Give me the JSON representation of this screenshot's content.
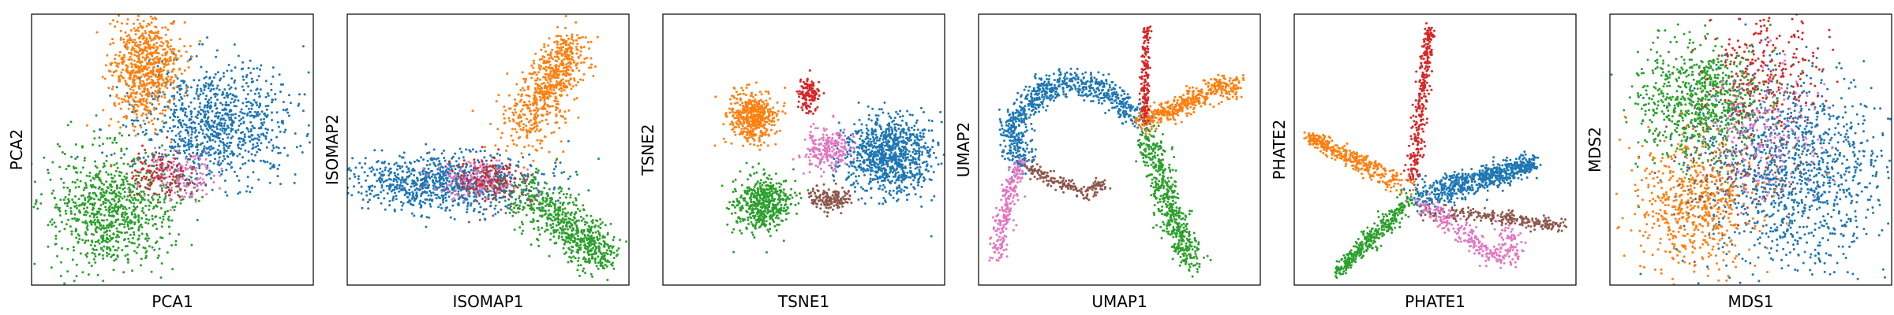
{
  "colors": {
    "blue": "#1f77b4",
    "orange": "#ff7f0e",
    "green": "#2ca02c",
    "red": "#d62728",
    "pink": "#e377c2",
    "brown": "#8c564b"
  },
  "chart_data": [
    {
      "type": "scatter",
      "title": "",
      "xlabel": "PCA1",
      "ylabel": "PCA2",
      "ticks": "none",
      "grid": false,
      "clusters": [
        {
          "color": "blue",
          "center": [
            0.65,
            0.4
          ],
          "spread": [
            0.14,
            0.11
          ],
          "points": 950,
          "shape": "blob"
        },
        {
          "color": "green",
          "center": [
            0.28,
            0.72
          ],
          "spread": [
            0.11,
            0.11
          ],
          "points": 850,
          "shape": "blob"
        },
        {
          "color": "orange",
          "center": [
            0.4,
            0.2
          ],
          "spread": [
            0.06,
            0.1
          ],
          "points": 700,
          "shape": "blob"
        },
        {
          "color": "pink",
          "center": [
            0.52,
            0.6
          ],
          "spread": [
            0.06,
            0.05
          ],
          "points": 140,
          "shape": "blob"
        },
        {
          "color": "red",
          "center": [
            0.45,
            0.58
          ],
          "spread": [
            0.05,
            0.04
          ],
          "points": 90,
          "shape": "blob"
        },
        {
          "color": "brown",
          "center": [
            0.5,
            0.62
          ],
          "spread": [
            0.05,
            0.04
          ],
          "points": 60,
          "shape": "blob"
        }
      ]
    },
    {
      "type": "scatter",
      "title": "",
      "xlabel": "ISOMAP1",
      "ylabel": "ISOMAP2",
      "ticks": "none",
      "grid": false,
      "clusters": [
        {
          "color": "blue",
          "center": [
            0.35,
            0.62
          ],
          "spread": [
            0.17,
            0.05
          ],
          "points": 950,
          "shape": "blob"
        },
        {
          "color": "orange",
          "from": [
            0.62,
            0.45
          ],
          "to": [
            0.8,
            0.1
          ],
          "width": 0.05,
          "points": 650,
          "shape": "arm"
        },
        {
          "color": "green",
          "from": [
            0.62,
            0.65
          ],
          "to": [
            0.92,
            0.9
          ],
          "width": 0.05,
          "points": 650,
          "shape": "arm"
        },
        {
          "color": "pink",
          "center": [
            0.45,
            0.62
          ],
          "spread": [
            0.07,
            0.04
          ],
          "points": 150,
          "shape": "blob"
        },
        {
          "color": "red",
          "center": [
            0.5,
            0.6
          ],
          "spread": [
            0.06,
            0.04
          ],
          "points": 120,
          "shape": "blob"
        },
        {
          "color": "brown",
          "center": [
            0.55,
            0.64
          ],
          "spread": [
            0.05,
            0.04
          ],
          "points": 70,
          "shape": "blob"
        }
      ]
    },
    {
      "type": "scatter",
      "title": "",
      "xlabel": "TSNE1",
      "ylabel": "TSNE2",
      "ticks": "none",
      "grid": false,
      "clusters": [
        {
          "color": "blue",
          "center": [
            0.8,
            0.52
          ],
          "spread": [
            0.08,
            0.07
          ],
          "points": 950,
          "shape": "blob"
        },
        {
          "color": "orange",
          "center": [
            0.32,
            0.38
          ],
          "spread": [
            0.04,
            0.05
          ],
          "points": 450,
          "shape": "blob"
        },
        {
          "color": "green",
          "center": [
            0.35,
            0.7
          ],
          "spread": [
            0.05,
            0.05
          ],
          "points": 500,
          "shape": "blob"
        },
        {
          "color": "red",
          "center": [
            0.52,
            0.3
          ],
          "spread": [
            0.02,
            0.03
          ],
          "points": 140,
          "shape": "blob"
        },
        {
          "color": "pink",
          "center": [
            0.58,
            0.5
          ],
          "spread": [
            0.04,
            0.04
          ],
          "points": 220,
          "shape": "blob"
        },
        {
          "color": "brown",
          "center": [
            0.6,
            0.68
          ],
          "spread": [
            0.04,
            0.02
          ],
          "points": 160,
          "shape": "blob"
        }
      ]
    },
    {
      "type": "scatter",
      "title": "",
      "xlabel": "UMAP1",
      "ylabel": "UMAP2",
      "ticks": "none",
      "grid": false,
      "clusters": [
        {
          "color": "blue",
          "path": [
            [
              0.15,
              0.55
            ],
            [
              0.12,
              0.4
            ],
            [
              0.22,
              0.28
            ],
            [
              0.35,
              0.25
            ],
            [
              0.48,
              0.3
            ],
            [
              0.58,
              0.4
            ]
          ],
          "width": 0.025,
          "points": 800,
          "shape": "curve"
        },
        {
          "color": "orange",
          "path": [
            [
              0.58,
              0.4
            ],
            [
              0.7,
              0.35
            ],
            [
              0.82,
              0.28
            ],
            [
              0.92,
              0.26
            ]
          ],
          "width": 0.02,
          "points": 450,
          "shape": "curve"
        },
        {
          "color": "green",
          "path": [
            [
              0.6,
              0.45
            ],
            [
              0.65,
              0.62
            ],
            [
              0.7,
              0.78
            ],
            [
              0.76,
              0.92
            ]
          ],
          "width": 0.025,
          "points": 550,
          "shape": "curve"
        },
        {
          "color": "red",
          "path": [
            [
              0.59,
              0.4
            ],
            [
              0.59,
              0.25
            ],
            [
              0.6,
              0.05
            ]
          ],
          "width": 0.008,
          "points": 160,
          "shape": "curve"
        },
        {
          "color": "pink",
          "path": [
            [
              0.15,
              0.55
            ],
            [
              0.1,
              0.7
            ],
            [
              0.07,
              0.9
            ]
          ],
          "width": 0.015,
          "points": 240,
          "shape": "curve"
        },
        {
          "color": "brown",
          "path": [
            [
              0.17,
              0.56
            ],
            [
              0.28,
              0.62
            ],
            [
              0.38,
              0.66
            ],
            [
              0.45,
              0.62
            ]
          ],
          "width": 0.012,
          "points": 180,
          "shape": "curve"
        }
      ]
    },
    {
      "type": "scatter",
      "title": "",
      "xlabel": "PHATE1",
      "ylabel": "PHATE2",
      "ticks": "none",
      "grid": false,
      "clusters": [
        {
          "color": "red",
          "from": [
            0.42,
            0.62
          ],
          "to": [
            0.48,
            0.05
          ],
          "width": 0.012,
          "points": 300,
          "shape": "arm"
        },
        {
          "color": "orange",
          "from": [
            0.42,
            0.65
          ],
          "to": [
            0.05,
            0.45
          ],
          "width": 0.018,
          "points": 350,
          "shape": "arm"
        },
        {
          "color": "green",
          "from": [
            0.42,
            0.68
          ],
          "to": [
            0.15,
            0.95
          ],
          "width": 0.018,
          "points": 350,
          "shape": "arm"
        },
        {
          "color": "blue",
          "from": [
            0.43,
            0.68
          ],
          "to": [
            0.85,
            0.55
          ],
          "width": 0.025,
          "points": 700,
          "shape": "arm"
        },
        {
          "color": "brown",
          "from": [
            0.45,
            0.72
          ],
          "to": [
            0.95,
            0.78
          ],
          "width": 0.015,
          "points": 250,
          "shape": "arm"
        },
        {
          "color": "pink",
          "path": [
            [
              0.45,
              0.7
            ],
            [
              0.6,
              0.8
            ],
            [
              0.7,
              0.9
            ],
            [
              0.78,
              0.88
            ],
            [
              0.75,
              0.78
            ]
          ],
          "width": 0.02,
          "points": 300,
          "shape": "curve"
        }
      ]
    },
    {
      "type": "scatter",
      "title": "",
      "xlabel": "MDS1",
      "ylabel": "MDS2",
      "ticks": "none",
      "grid": false,
      "clusters": [
        {
          "color": "blue",
          "center": [
            0.65,
            0.58
          ],
          "spread": [
            0.16,
            0.18
          ],
          "points": 1200,
          "shape": "blob"
        },
        {
          "color": "green",
          "center": [
            0.32,
            0.32
          ],
          "spread": [
            0.11,
            0.11
          ],
          "points": 800,
          "shape": "blob"
        },
        {
          "color": "orange",
          "center": [
            0.3,
            0.7
          ],
          "spread": [
            0.11,
            0.12
          ],
          "points": 600,
          "shape": "blob"
        },
        {
          "color": "red",
          "center": [
            0.55,
            0.2
          ],
          "spread": [
            0.1,
            0.1
          ],
          "points": 250,
          "shape": "blob"
        },
        {
          "color": "pink",
          "center": [
            0.55,
            0.45
          ],
          "spread": [
            0.1,
            0.12
          ],
          "points": 200,
          "shape": "blob"
        },
        {
          "color": "brown",
          "center": [
            0.45,
            0.55
          ],
          "spread": [
            0.12,
            0.12
          ],
          "points": 150,
          "shape": "blob"
        }
      ]
    }
  ]
}
